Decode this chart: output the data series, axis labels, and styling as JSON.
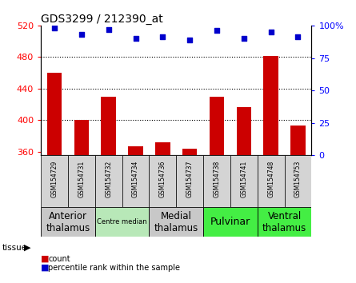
{
  "title": "GDS3299 / 212390_at",
  "samples": [
    "GSM154729",
    "GSM154731",
    "GSM154732",
    "GSM154734",
    "GSM154736",
    "GSM154737",
    "GSM154738",
    "GSM154741",
    "GSM154748",
    "GSM154753"
  ],
  "counts": [
    460,
    400,
    430,
    367,
    372,
    364,
    430,
    416,
    481,
    393
  ],
  "percentile_ranks": [
    98,
    93,
    97,
    90,
    91,
    89,
    96,
    90,
    95,
    91
  ],
  "ylim_left": [
    355,
    520
  ],
  "ylim_right": [
    0,
    100
  ],
  "yticks_left": [
    360,
    400,
    440,
    480,
    520
  ],
  "yticks_right": [
    0,
    25,
    50,
    75,
    100
  ],
  "bar_color": "#cc0000",
  "dot_color": "#0000cc",
  "tissue_groups": [
    {
      "label": "Anterior\nthalamus",
      "start": 0,
      "end": 1,
      "color": "#c8c8c8",
      "fontsize": 8.5
    },
    {
      "label": "Centre median",
      "start": 2,
      "end": 3,
      "color": "#b8e8b8",
      "fontsize": 6.0
    },
    {
      "label": "Medial\nthalamus",
      "start": 4,
      "end": 5,
      "color": "#c8c8c8",
      "fontsize": 8.5
    },
    {
      "label": "Pulvinar",
      "start": 6,
      "end": 7,
      "color": "#44ee44",
      "fontsize": 9.0
    },
    {
      "label": "Ventral\nthalamus",
      "start": 8,
      "end": 9,
      "color": "#44ee44",
      "fontsize": 8.5
    }
  ]
}
